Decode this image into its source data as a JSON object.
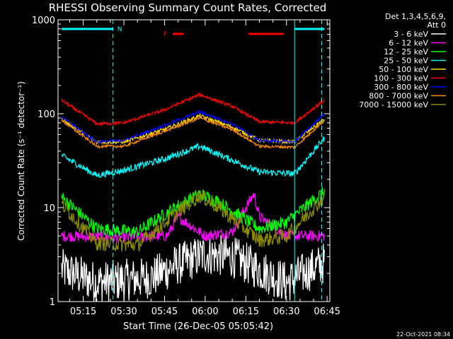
{
  "chart_data": {
    "type": "line",
    "title": "RHESSI Observing Summary Count Rates, Corrected",
    "xlabel": "Start Time (26-Dec-05 05:05:42)",
    "ylabel": "Corrected Count Rate (s⁻¹ detector⁻¹)",
    "yscale": "log",
    "ylim": [
      1,
      1000
    ],
    "xlim": [
      "05:05:42",
      "06:46:00"
    ],
    "x_ticks": [
      "05:15",
      "05:30",
      "05:45",
      "06:00",
      "06:15",
      "06:30",
      "06:45"
    ],
    "y_ticks": [
      "1",
      "10",
      "100",
      "1000"
    ],
    "legend_header": [
      "Det 1,3,4,5,6,9,",
      "Att 0"
    ],
    "legend_position": "right",
    "timestamp": "22-Oct-2021 08:34",
    "flag_labels": {
      "night": "N",
      "flare": "F"
    },
    "night_intervals": [
      [
        "05:07",
        "05:26"
      ],
      [
        "06:33",
        "06:44"
      ]
    ],
    "saa_lines": [
      "05:26",
      "06:33",
      "06:43"
    ],
    "flare_intervals": [
      [
        "05:48",
        "05:52"
      ],
      [
        "06:16",
        "06:29"
      ]
    ],
    "series": [
      {
        "name": "3 - 6 keV",
        "color": "#ffffff",
        "t": [
          "05:07",
          "05:20",
          "05:40",
          "05:50",
          "06:00",
          "06:10",
          "06:20",
          "06:30",
          "06:44"
        ],
        "values": [
          2.2,
          1.6,
          1.8,
          2.5,
          3.2,
          3.0,
          2.2,
          1.6,
          2.6
        ]
      },
      {
        "name": "6 - 12 keV",
        "color": "#ff00ff",
        "t": [
          "05:07",
          "05:30",
          "05:46",
          "05:50",
          "06:00",
          "06:10",
          "06:14",
          "06:18",
          "06:20",
          "06:30",
          "06:44"
        ],
        "values": [
          5.0,
          4.8,
          5.0,
          8.0,
          5.0,
          5.5,
          9.0,
          14.0,
          8.0,
          5.0,
          5.0
        ]
      },
      {
        "name": "12 - 25 keV",
        "color": "#00ff00",
        "t": [
          "05:07",
          "05:20",
          "05:35",
          "05:50",
          "05:58",
          "06:05",
          "06:20",
          "06:30",
          "06:44"
        ],
        "values": [
          13.0,
          6.0,
          5.5,
          10.5,
          14.0,
          11.5,
          6.0,
          7.0,
          15.0
        ]
      },
      {
        "name": "25 - 50 keV",
        "color": "#00ffff",
        "t": [
          "05:07",
          "05:20",
          "05:30",
          "05:45",
          "05:58",
          "06:10",
          "06:20",
          "06:33",
          "06:44"
        ],
        "values": [
          36.0,
          22.0,
          25.0,
          33.0,
          45.0,
          32.0,
          24.0,
          23.0,
          55.0
        ]
      },
      {
        "name": "50 - 100 keV",
        "color": "#ffd700",
        "t": [
          "05:07",
          "05:20",
          "05:30",
          "05:45",
          "05:58",
          "06:10",
          "06:20",
          "06:33",
          "06:44"
        ],
        "values": [
          88.0,
          50.0,
          50.0,
          68.0,
          95.0,
          72.0,
          52.0,
          50.0,
          88.0
        ]
      },
      {
        "name": "100 - 300 keV",
        "color": "#ff0000",
        "t": [
          "05:07",
          "05:20",
          "05:30",
          "05:45",
          "05:58",
          "06:10",
          "06:20",
          "06:33",
          "06:44"
        ],
        "values": [
          140.0,
          78.0,
          80.0,
          110.0,
          160.0,
          120.0,
          82.0,
          80.0,
          140.0
        ]
      },
      {
        "name": "300 - 800 keV",
        "color": "#0000ff",
        "t": [
          "05:07",
          "05:20",
          "05:30",
          "05:45",
          "05:58",
          "06:10",
          "06:20",
          "06:33",
          "06:44"
        ],
        "values": [
          92.0,
          50.0,
          52.0,
          75.0,
          105.0,
          78.0,
          52.0,
          50.0,
          100.0
        ]
      },
      {
        "name": "800 - 7000 keV",
        "color": "#ff8c00",
        "t": [
          "05:07",
          "05:20",
          "05:30",
          "05:45",
          "05:58",
          "06:10",
          "06:20",
          "06:33",
          "06:44"
        ],
        "values": [
          85.0,
          45.0,
          45.0,
          65.0,
          90.0,
          68.0,
          45.0,
          44.0,
          85.0
        ]
      },
      {
        "name": "7000 - 15000 keV",
        "color": "#8b8b00",
        "t": [
          "05:07",
          "05:20",
          "05:35",
          "05:50",
          "05:58",
          "06:05",
          "06:20",
          "06:30",
          "06:44"
        ],
        "values": [
          11.0,
          4.2,
          4.0,
          9.0,
          13.5,
          10.0,
          4.5,
          5.0,
          13.0
        ]
      }
    ]
  }
}
